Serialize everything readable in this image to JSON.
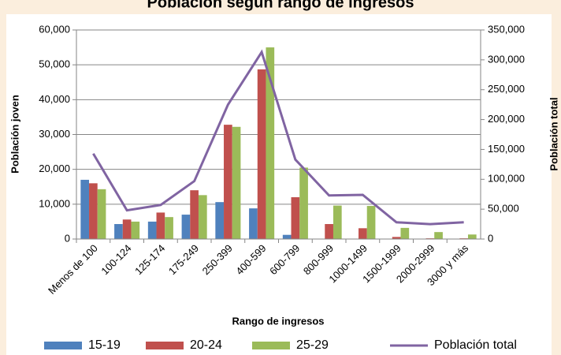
{
  "chart_data": {
    "type": "bar-line",
    "title": "Población según rango de ingresos",
    "x_label": "Rango de ingresos",
    "y_label": "Población joven",
    "y2_label": "Población total",
    "categories": [
      "Menos de 100",
      "100-124",
      "125-174",
      "175-249",
      "250-399",
      "400-599",
      "600-799",
      "800-999",
      "1000-1499",
      "1500-1999",
      "2000-2999",
      "3000 y más"
    ],
    "series": [
      {
        "name": "15-19",
        "color": "#4f81bd",
        "type": "bar",
        "values": [
          17000,
          4300,
          5000,
          7000,
          10600,
          8800,
          1200,
          0,
          0,
          0,
          0,
          0
        ]
      },
      {
        "name": "20-24",
        "color": "#c0504d",
        "type": "bar",
        "values": [
          16000,
          5600,
          7600,
          14000,
          32800,
          48700,
          12000,
          4300,
          3100,
          600,
          200,
          200
        ]
      },
      {
        "name": "25-29",
        "color": "#9bbb59",
        "type": "bar",
        "values": [
          14300,
          5000,
          6300,
          12600,
          32200,
          55000,
          20500,
          9600,
          9500,
          3200,
          2000,
          1300
        ]
      },
      {
        "name": "Población total",
        "color": "#8064a2",
        "type": "line",
        "axis": "y2",
        "values": [
          143000,
          48000,
          57000,
          97000,
          225000,
          313000,
          133000,
          73000,
          74000,
          28000,
          25000,
          28000
        ]
      }
    ],
    "ylim": [
      0,
      60000
    ],
    "yticks": [
      0,
      {
        "value": 10000,
        "label": "10,000"
      },
      {
        "value": 20000,
        "label": "20,000"
      },
      {
        "value": 30000,
        "label": "30,000"
      },
      {
        "value": 40000,
        "label": "40,000"
      },
      {
        "value": 50000,
        "label": "50,000"
      },
      {
        "value": 60000,
        "label": "60,000"
      }
    ],
    "y2lim": [
      0,
      350000
    ],
    "y2ticks": [
      0,
      {
        "value": 50000,
        "label": "50,000"
      },
      {
        "value": 100000,
        "label": "100,000"
      },
      {
        "value": 150000,
        "label": "150,000"
      },
      {
        "value": 200000,
        "label": "200,000"
      },
      {
        "value": 250000,
        "label": "250,000"
      },
      {
        "value": 300000,
        "label": "300,000"
      },
      {
        "value": 350000,
        "label": "350,000"
      }
    ],
    "grid": true,
    "legend": "bottom"
  }
}
